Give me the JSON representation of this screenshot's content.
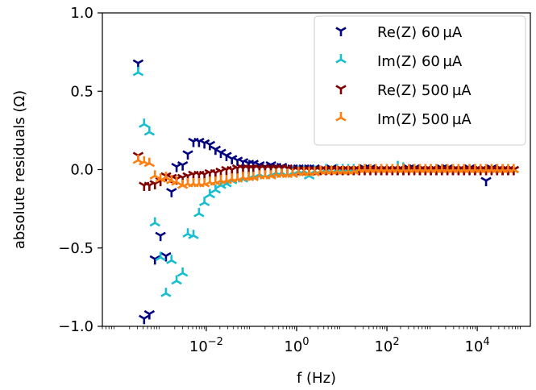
{
  "chart_data": {
    "type": "scatter",
    "title": "",
    "xlabel": "f (Hz)",
    "ylabel": "absolute residuals (Ω)",
    "xscale": "log",
    "xlim": [
      5e-05,
      150000
    ],
    "ylim": [
      -1.0,
      1.0
    ],
    "x_ticks": [
      {
        "value": 0.01,
        "base": "10",
        "exp": "−2"
      },
      {
        "value": 1,
        "base": "10",
        "exp": "0"
      },
      {
        "value": 100,
        "base": "10",
        "exp": "2"
      },
      {
        "value": 10000,
        "base": "10",
        "exp": "4"
      }
    ],
    "y_ticks": [
      {
        "value": 1.0,
        "label": "1.0"
      },
      {
        "value": 0.5,
        "label": "0.5"
      },
      {
        "value": 0.0,
        "label": "0.0"
      },
      {
        "value": -0.5,
        "label": "−0.5"
      },
      {
        "value": -1.0,
        "label": "−1.0"
      }
    ],
    "grid": false,
    "legend_position": "top-right",
    "series": [
      {
        "name": "Re(Z) 60 µA",
        "color": "#000080",
        "marker": "tri_down",
        "x": [
          0.00031,
          0.00042,
          0.00055,
          0.00073,
          0.00097,
          0.00128,
          0.0017,
          0.0022,
          0.003,
          0.0039,
          0.0052,
          0.0069,
          0.0091,
          0.012,
          0.016,
          0.021,
          0.028,
          0.037,
          0.049,
          0.065,
          0.087,
          0.11,
          0.15,
          0.2,
          0.27,
          0.35,
          0.47,
          0.62,
          0.82,
          1.1,
          1.45,
          1.9,
          2.5,
          3.4,
          4.5,
          5.9,
          7.9,
          10.5,
          13.9,
          18.4,
          24.4,
          32.3,
          42.8,
          56.7,
          75.1,
          99.5,
          132,
          174,
          231,
          306,
          405,
          537,
          711,
          942,
          1248,
          1653,
          2190,
          2902,
          3845,
          5094,
          6749,
          8941,
          11846,
          15694,
          20792,
          27546,
          36495,
          48351,
          64059
        ],
        "y": [
          0.68,
          -0.95,
          -0.92,
          -0.57,
          -0.42,
          -0.55,
          -0.14,
          0.02,
          0.03,
          0.1,
          0.18,
          0.18,
          0.17,
          0.16,
          0.13,
          0.11,
          0.09,
          0.07,
          0.06,
          0.05,
          0.04,
          0.04,
          0.03,
          0.02,
          0.03,
          0.02,
          0.02,
          0.01,
          0.01,
          0.01,
          0.01,
          0.01,
          0.01,
          0.0,
          0.0,
          0.01,
          0.0,
          0.0,
          0.0,
          0.0,
          0.0,
          0.01,
          0.01,
          0.0,
          0.0,
          0.0,
          0.0,
          0.0,
          0.0,
          0.01,
          0.01,
          0.0,
          0.0,
          0.0,
          0.0,
          0.01,
          0.01,
          0.0,
          0.0,
          0.0,
          0.01,
          0.0,
          0.0,
          -0.07,
          0.01,
          0.0,
          0.0,
          0.0,
          0.0
        ]
      },
      {
        "name": "Im(Z) 60 µA",
        "color": "#17becf",
        "marker": "tri_up",
        "x": [
          0.00031,
          0.00042,
          0.00055,
          0.00073,
          0.00097,
          0.00128,
          0.0017,
          0.0022,
          0.003,
          0.0039,
          0.0052,
          0.0069,
          0.0091,
          0.012,
          0.016,
          0.021,
          0.028,
          0.037,
          0.049,
          0.065,
          0.087,
          0.11,
          0.15,
          0.2,
          0.27,
          0.35,
          0.47,
          0.62,
          0.82,
          1.1,
          1.45,
          1.9,
          2.5,
          3.4,
          4.5,
          5.9,
          7.9,
          10.5,
          13.9,
          18.4,
          24.4,
          32.3,
          42.8,
          56.7,
          75.1,
          99.5,
          132,
          174,
          231,
          306,
          405,
          537,
          711,
          942,
          1248,
          1653,
          2190,
          2902,
          3845,
          5094,
          6749,
          8941,
          11846,
          15694,
          20792,
          27546,
          36495,
          48351,
          64059
        ],
        "y": [
          0.62,
          0.29,
          0.24,
          -0.34,
          -0.56,
          -0.79,
          -0.58,
          -0.71,
          -0.66,
          -0.41,
          -0.42,
          -0.28,
          -0.21,
          -0.16,
          -0.13,
          -0.1,
          -0.09,
          -0.07,
          -0.06,
          -0.06,
          -0.05,
          -0.04,
          -0.03,
          -0.04,
          -0.03,
          -0.02,
          -0.02,
          -0.03,
          -0.02,
          -0.01,
          -0.01,
          -0.04,
          -0.01,
          -0.01,
          0.0,
          -0.01,
          0.0,
          0.0,
          0.0,
          0.0,
          0.0,
          0.0,
          0.0,
          0.0,
          0.0,
          0.0,
          0.0,
          0.02,
          0.01,
          0.0,
          0.0,
          0.0,
          0.0,
          0.0,
          0.0,
          0.0,
          0.0,
          0.0,
          0.0,
          0.0,
          0.0,
          0.0,
          0.0,
          0.0,
          0.0,
          0.0,
          0.0,
          0.0,
          0.0
        ]
      },
      {
        "name": "Re(Z) 500 µA",
        "color": "#800000",
        "marker": "tri_down",
        "x": [
          0.00031,
          0.00042,
          0.00055,
          0.00073,
          0.00097,
          0.00128,
          0.0017,
          0.0022,
          0.003,
          0.0039,
          0.0052,
          0.0069,
          0.0091,
          0.012,
          0.016,
          0.021,
          0.028,
          0.037,
          0.049,
          0.065,
          0.087,
          0.11,
          0.15,
          0.2,
          0.27,
          0.35,
          0.47,
          0.62,
          0.82,
          1.1,
          1.45,
          1.9,
          2.5,
          3.4,
          4.5,
          5.9,
          7.9,
          10.5,
          13.9,
          18.4,
          24.4,
          32.3,
          42.8,
          56.7,
          75.1,
          99.5,
          132,
          174,
          231,
          306,
          405,
          537,
          711,
          942,
          1248,
          1653,
          2190,
          2902,
          3845,
          5094,
          6749,
          8941,
          11846,
          15694,
          20792,
          27546,
          36495,
          48351,
          64059
        ],
        "y": [
          0.09,
          -0.1,
          -0.1,
          -0.09,
          -0.07,
          -0.04,
          -0.05,
          -0.06,
          -0.05,
          -0.04,
          -0.03,
          -0.03,
          -0.03,
          -0.02,
          -0.02,
          -0.01,
          0.0,
          0.0,
          0.01,
          0.01,
          0.01,
          0.01,
          0.01,
          0.01,
          0.01,
          0.01,
          0.01,
          0.01,
          0.0,
          0.0,
          0.0,
          0.0,
          0.0,
          0.0,
          0.0,
          0.0,
          0.0,
          0.0,
          0.0,
          0.0,
          0.0,
          0.0,
          0.0,
          0.0,
          0.0,
          0.0,
          0.0,
          0.0,
          0.0,
          0.0,
          0.0,
          0.0,
          0.0,
          0.0,
          0.0,
          0.0,
          0.0,
          0.0,
          0.0,
          0.0,
          0.0,
          0.0,
          0.0,
          0.0,
          0.0,
          0.0,
          0.0,
          0.0,
          0.0
        ]
      },
      {
        "name": "Im(Z) 500 µA",
        "color": "#ff7f0e",
        "marker": "tri_up",
        "x": [
          0.00031,
          0.00042,
          0.00055,
          0.00073,
          0.00097,
          0.00128,
          0.0017,
          0.0022,
          0.003,
          0.0039,
          0.0052,
          0.0069,
          0.0091,
          0.012,
          0.016,
          0.021,
          0.028,
          0.037,
          0.049,
          0.065,
          0.087,
          0.11,
          0.15,
          0.2,
          0.27,
          0.35,
          0.47,
          0.62,
          0.82,
          1.1,
          1.45,
          1.9,
          2.5,
          3.4,
          4.5,
          5.9,
          7.9,
          10.5,
          13.9,
          18.4,
          24.4,
          32.3,
          42.8,
          56.7,
          75.1,
          99.5,
          132,
          174,
          231,
          306,
          405,
          537,
          711,
          942,
          1248,
          1653,
          2190,
          2902,
          3845,
          5094,
          6749,
          8941,
          11846,
          15694,
          20792,
          27546,
          36495,
          48351,
          64059
        ],
        "y": [
          0.06,
          0.05,
          0.04,
          -0.04,
          -0.06,
          -0.05,
          -0.07,
          -0.08,
          -0.1,
          -0.09,
          -0.09,
          -0.09,
          -0.09,
          -0.08,
          -0.08,
          -0.07,
          -0.07,
          -0.06,
          -0.06,
          -0.05,
          -0.05,
          -0.05,
          -0.04,
          -0.04,
          -0.04,
          -0.03,
          -0.03,
          -0.03,
          -0.03,
          -0.02,
          -0.02,
          -0.02,
          -0.02,
          -0.01,
          -0.01,
          -0.01,
          -0.01,
          -0.01,
          -0.01,
          -0.01,
          0.0,
          0.0,
          0.0,
          0.0,
          0.0,
          0.0,
          0.0,
          0.0,
          0.0,
          0.0,
          0.0,
          0.0,
          0.0,
          0.0,
          0.0,
          0.0,
          0.0,
          0.0,
          0.0,
          0.0,
          0.0,
          0.0,
          0.0,
          0.0,
          0.0,
          0.0,
          0.0,
          0.0,
          0.0
        ]
      }
    ]
  }
}
